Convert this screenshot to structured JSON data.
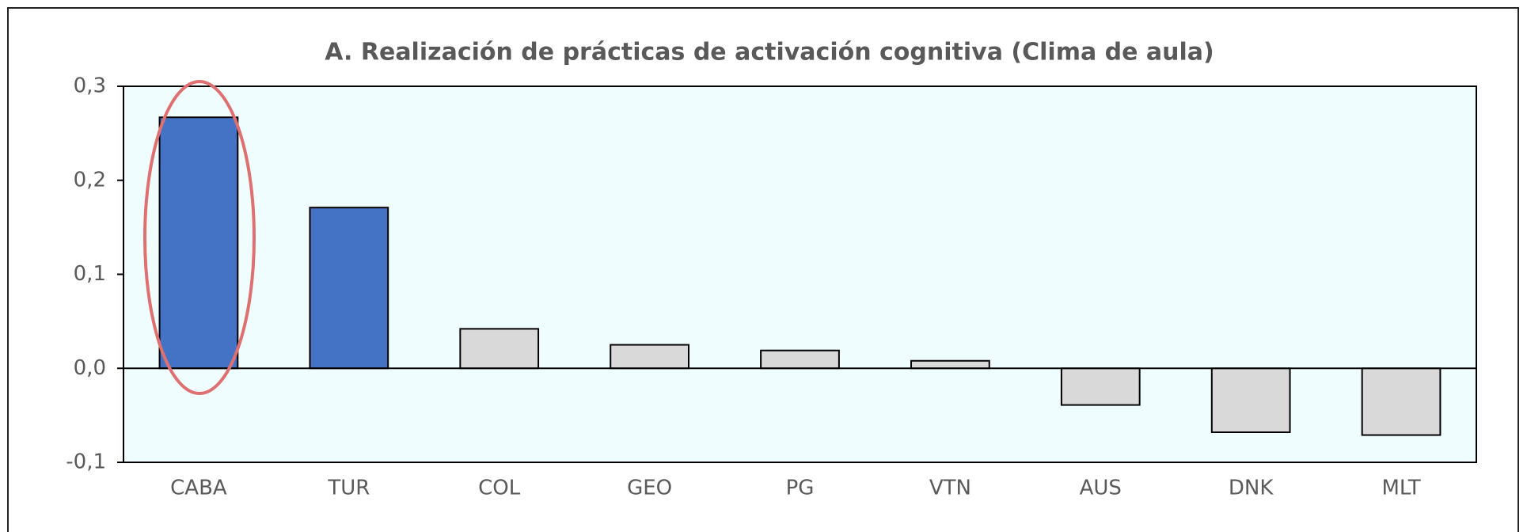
{
  "chart_data": {
    "type": "bar",
    "title": "A. Realización de prácticas de activación cognitiva (Clima de aula)",
    "categories": [
      "CABA",
      "TUR",
      "COL",
      "GEO",
      "PG",
      "VTN",
      "AUS",
      "DNK",
      "MLT"
    ],
    "values": [
      0.267,
      0.171,
      0.042,
      0.025,
      0.019,
      0.008,
      -0.039,
      -0.068,
      -0.071
    ],
    "colors": [
      "#4472c4",
      "#4472c4",
      "#d9d9d9",
      "#d9d9d9",
      "#d9d9d9",
      "#d9d9d9",
      "#d9d9d9",
      "#d9d9d9",
      "#d9d9d9"
    ],
    "ylim": [
      -0.1,
      0.3
    ],
    "yticks": [
      {
        "value": -0.1,
        "label": "-0,1"
      },
      {
        "value": 0,
        "label": "0,0"
      },
      {
        "value": 0.1,
        "label": "0,1"
      },
      {
        "value": 0.2,
        "label": "0,2"
      },
      {
        "value": 0.3,
        "label": "0,3"
      }
    ]
  }
}
